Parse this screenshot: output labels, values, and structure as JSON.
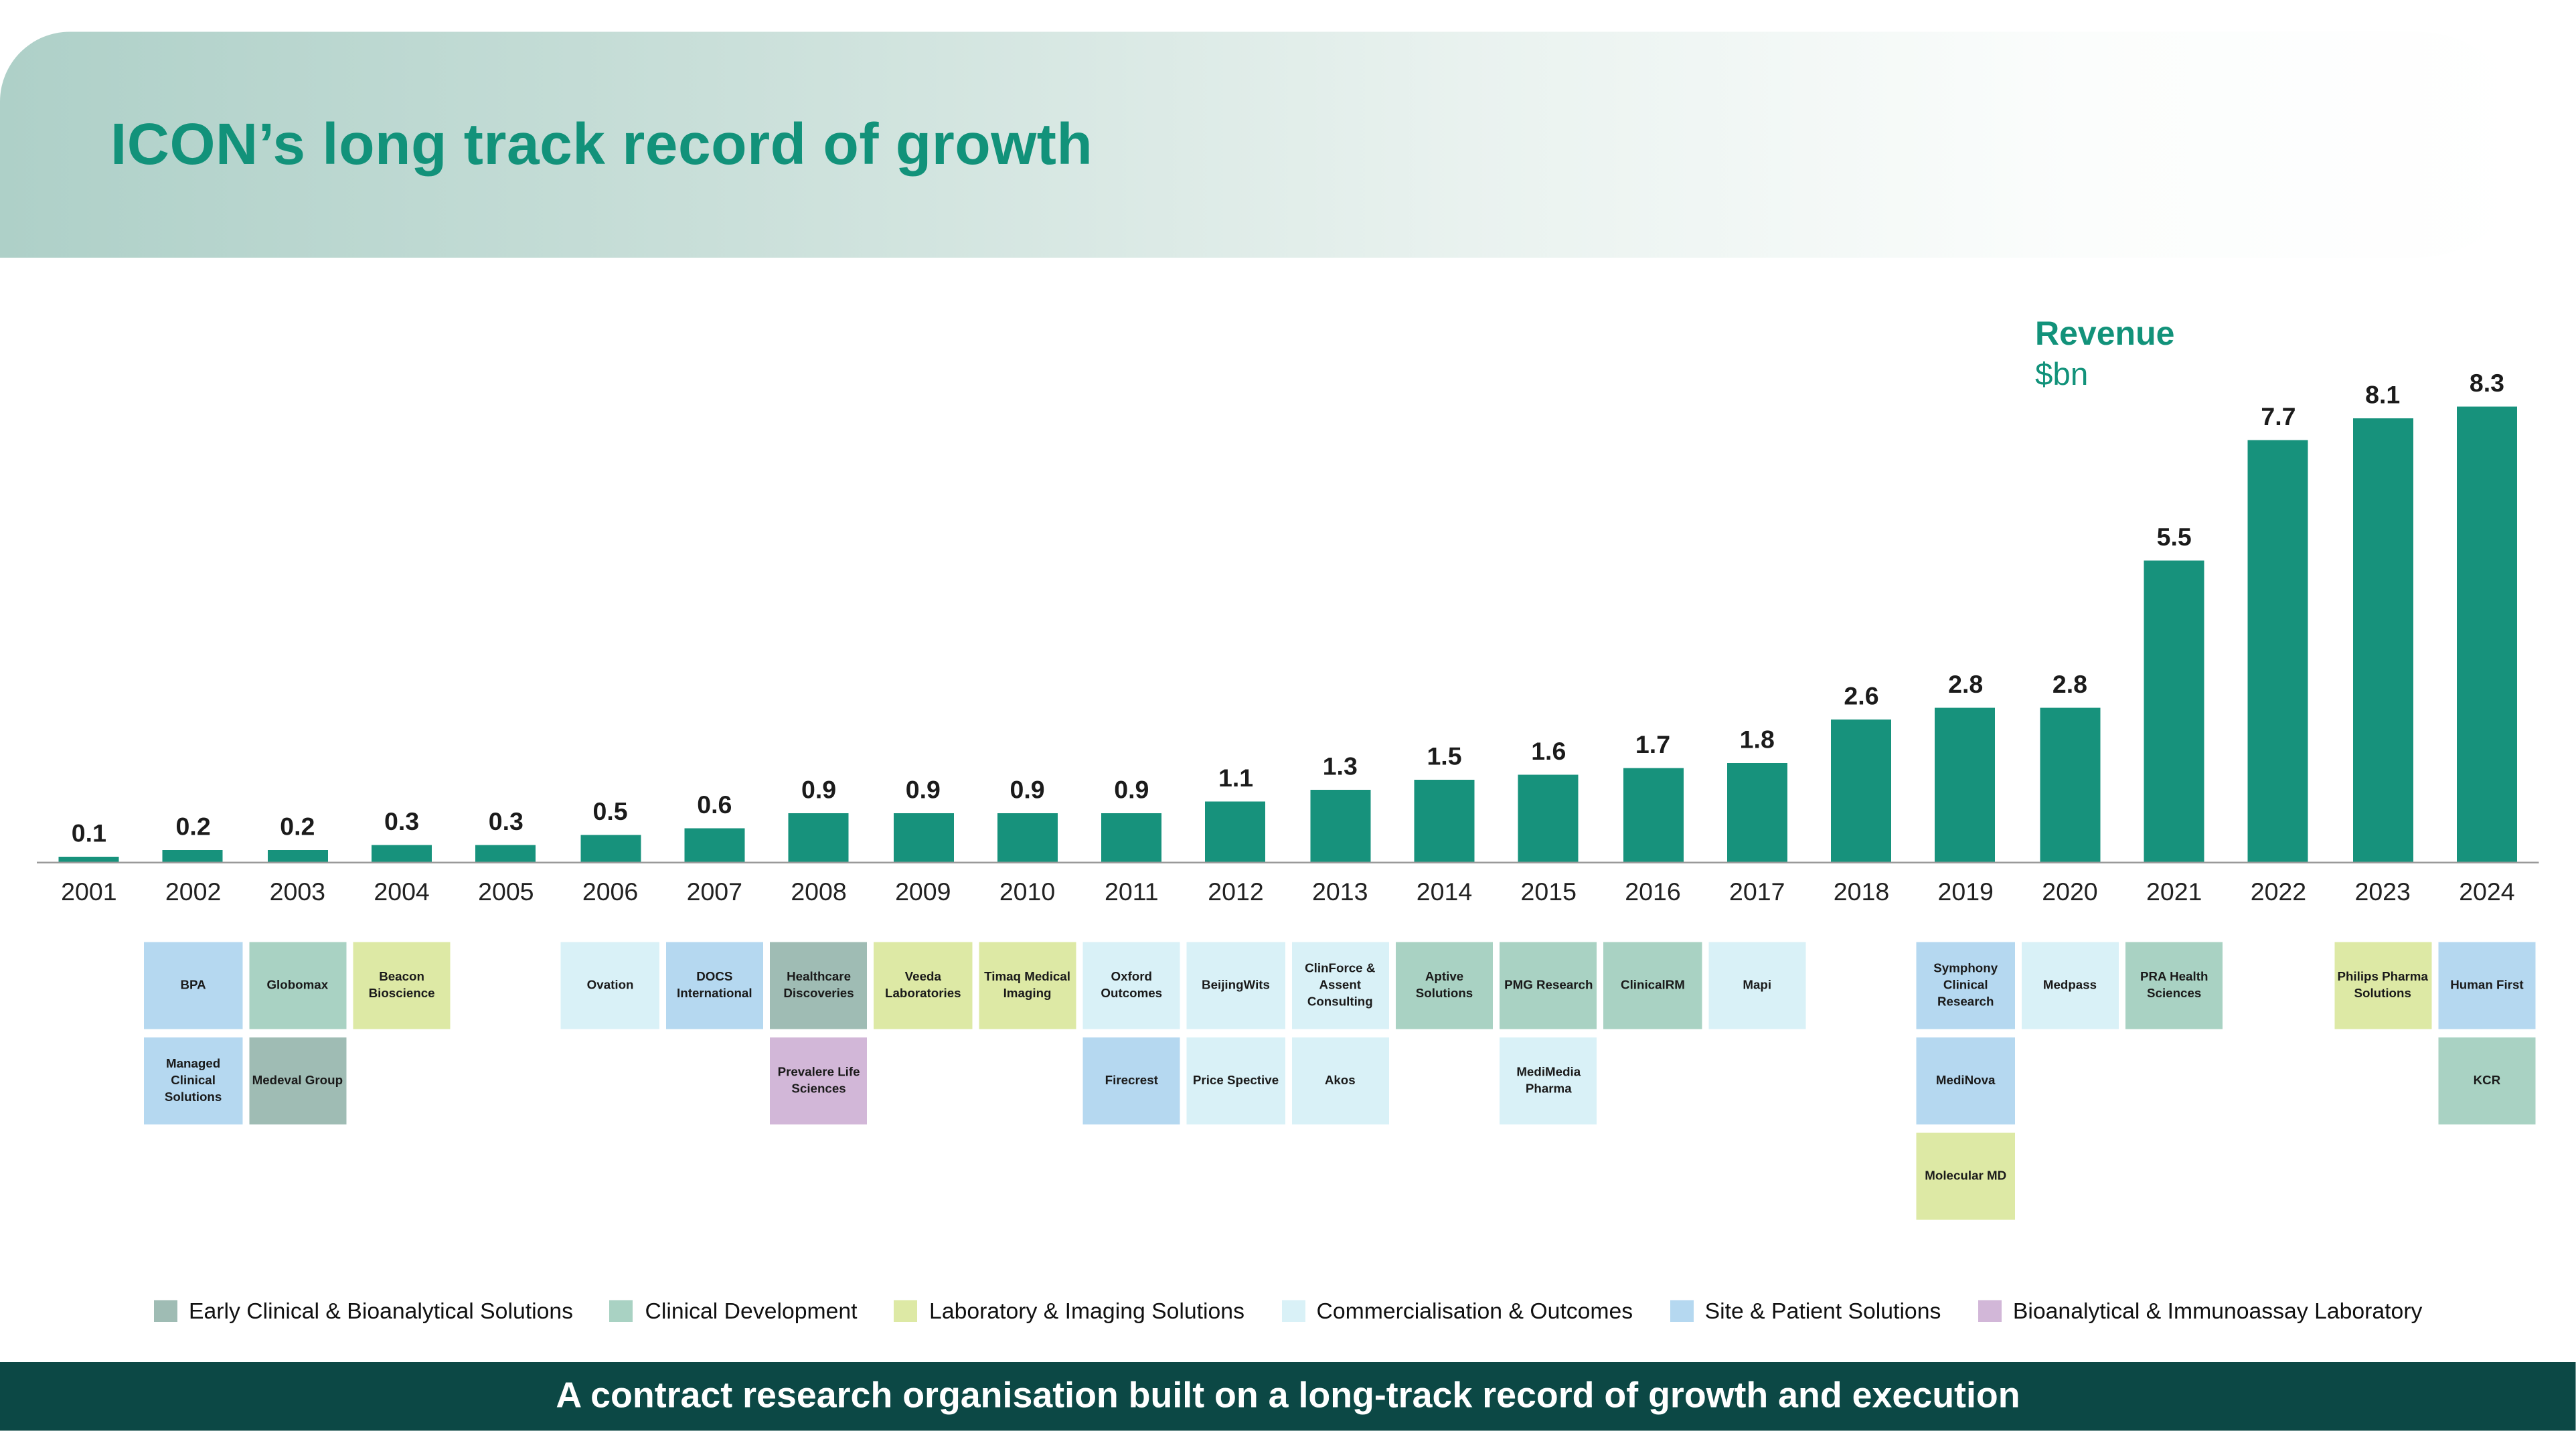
{
  "header": {
    "title": "ICON’s long track record of growth"
  },
  "chart_data": {
    "type": "bar",
    "title": "Revenue",
    "unit_label": "$bn",
    "categories": [
      "2001",
      "2002",
      "2003",
      "2004",
      "2005",
      "2006",
      "2007",
      "2008",
      "2009",
      "2010",
      "2011",
      "2012",
      "2013",
      "2014",
      "2015",
      "2016",
      "2017",
      "2018",
      "2019",
      "2020",
      "2021",
      "2022",
      "2023",
      "2024"
    ],
    "values": [
      0.1,
      0.2,
      0.2,
      0.3,
      0.3,
      0.5,
      0.6,
      0.9,
      0.9,
      0.9,
      0.9,
      1.1,
      1.3,
      1.5,
      1.6,
      1.7,
      1.8,
      2.6,
      2.8,
      2.8,
      5.5,
      7.7,
      8.1,
      8.3
    ],
    "ylim": [
      0,
      8.5
    ],
    "bar_color": "#17927c",
    "grid": "off",
    "value_labels": "above bars",
    "xlabel": "",
    "ylabel": ""
  },
  "legend": {
    "items": [
      {
        "id": "early",
        "label": "Early Clinical & Bioanalytical Solutions",
        "color": "#9fbcb4"
      },
      {
        "id": "clindev",
        "label": "Clinical Development",
        "color": "#a9d2c3"
      },
      {
        "id": "lab",
        "label": "Laboratory & Imaging Solutions",
        "color": "#dde9a5"
      },
      {
        "id": "comm",
        "label": "Commercialisation & Outcomes",
        "color": "#d9f1f7"
      },
      {
        "id": "site",
        "label": "Site & Patient Solutions",
        "color": "#b5d8f0"
      },
      {
        "id": "bio",
        "label": "Bioanalytical & Immunoassay Laboratory",
        "color": "#d2b7d8"
      }
    ]
  },
  "acquisitions": [
    {
      "year": "2002",
      "row": 1,
      "label": "BPA",
      "category": "site"
    },
    {
      "year": "2002",
      "row": 2,
      "label": "Managed Clinical Solutions",
      "category": "site"
    },
    {
      "year": "2003",
      "row": 1,
      "label": "Globomax",
      "category": "clindev"
    },
    {
      "year": "2003",
      "row": 2,
      "label": "Medeval Group",
      "category": "early"
    },
    {
      "year": "2004",
      "row": 1,
      "label": "Beacon Bioscience",
      "category": "lab"
    },
    {
      "year": "2006",
      "row": 1,
      "label": "Ovation",
      "category": "comm"
    },
    {
      "year": "2007",
      "row": 1,
      "label": "DOCS International",
      "category": "site"
    },
    {
      "year": "2008",
      "row": 1,
      "label": "Healthcare Discoveries",
      "category": "early"
    },
    {
      "year": "2008",
      "row": 2,
      "label": "Prevalere Life Sciences",
      "category": "bio"
    },
    {
      "year": "2009",
      "row": 1,
      "label": "Veeda Laboratories",
      "category": "lab"
    },
    {
      "year": "2010",
      "row": 1,
      "label": "Timaq Medical Imaging",
      "category": "lab"
    },
    {
      "year": "2011",
      "row": 1,
      "label": "Oxford Outcomes",
      "category": "comm"
    },
    {
      "year": "2011",
      "row": 2,
      "label": "Firecrest",
      "category": "site"
    },
    {
      "year": "2012",
      "row": 1,
      "label": "BeijingWits",
      "category": "comm"
    },
    {
      "year": "2012",
      "row": 2,
      "label": "Price Spective",
      "category": "comm"
    },
    {
      "year": "2013",
      "row": 1,
      "label": "ClinForce & Assent Consulting",
      "category": "comm"
    },
    {
      "year": "2013",
      "row": 2,
      "label": "Akos",
      "category": "comm"
    },
    {
      "year": "2014",
      "row": 1,
      "label": "Aptive Solutions",
      "category": "clindev"
    },
    {
      "year": "2015",
      "row": 1,
      "label": "PMG Research",
      "category": "clindev"
    },
    {
      "year": "2015",
      "row": 2,
      "label": "MediMedia Pharma",
      "category": "comm"
    },
    {
      "year": "2016",
      "row": 1,
      "label": "ClinicalRM",
      "category": "clindev"
    },
    {
      "year": "2017",
      "row": 1,
      "label": "Mapi",
      "category": "comm"
    },
    {
      "year": "2019",
      "row": 1,
      "label": "Symphony Clinical Research",
      "category": "site"
    },
    {
      "year": "2019",
      "row": 2,
      "label": "MediNova",
      "category": "site"
    },
    {
      "year": "2019",
      "row": 3,
      "label": "Molecular MD",
      "category": "lab"
    },
    {
      "year": "2020",
      "row": 1,
      "label": "Medpass",
      "category": "comm"
    },
    {
      "year": "2021",
      "row": 1,
      "label": "PRA Health Sciences",
      "category": "clindev"
    },
    {
      "year": "2023",
      "row": 1,
      "label": "Philips Pharma Solutions",
      "category": "lab"
    },
    {
      "year": "2024",
      "row": 1,
      "label": "Human First",
      "category": "site"
    },
    {
      "year": "2024",
      "row": 2,
      "label": "KCR",
      "category": "clindev"
    }
  ],
  "footer": {
    "text": "A contract research organisation built on a long-track record of growth and execution"
  }
}
